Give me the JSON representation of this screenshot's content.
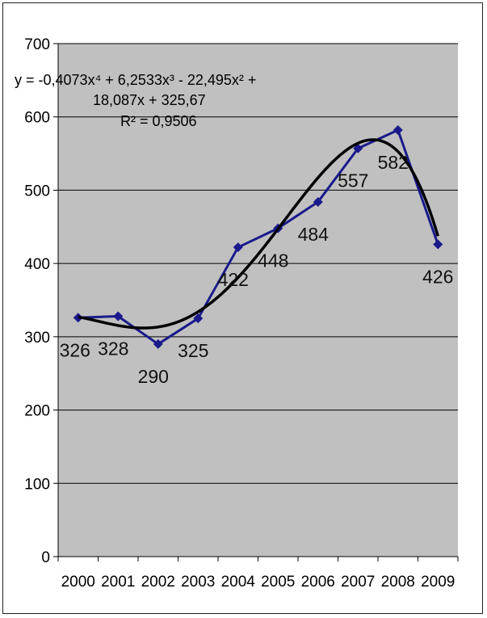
{
  "chart_data": {
    "type": "line",
    "title": "",
    "xlabel": "",
    "ylabel": "",
    "categories": [
      "2000",
      "2001",
      "2002",
      "2003",
      "2004",
      "2005",
      "2006",
      "2007",
      "2008",
      "2009"
    ],
    "series": [
      {
        "values": [
          326,
          328,
          290,
          325,
          422,
          448,
          484,
          557,
          582,
          426
        ]
      }
    ],
    "data_labels": [
      "326",
      "328",
      "290",
      "325",
      "422",
      "448",
      "484",
      "557",
      "582",
      "426"
    ],
    "y_ticks": [
      "0",
      "100",
      "200",
      "300",
      "400",
      "500",
      "600",
      "700"
    ],
    "ylim": [
      0,
      700
    ],
    "grid": true,
    "legend": "none",
    "trendline": {
      "type": "polynomial",
      "order": 4,
      "coefficients": [
        -0.4073,
        6.2533,
        -22.495,
        18.087,
        325.67
      ],
      "equation_line1": "y = -0,4073x⁴ + 6,2533x³ - 22,495x² +",
      "equation_line2": "18,087x + 325,67",
      "r_squared": "R² = 0,9506",
      "color": "#000000"
    },
    "colors": {
      "plot_background": "#c0c0c0",
      "series_line": "#1a1a8c",
      "trendline": "#000000",
      "gridline": "#000000"
    }
  }
}
